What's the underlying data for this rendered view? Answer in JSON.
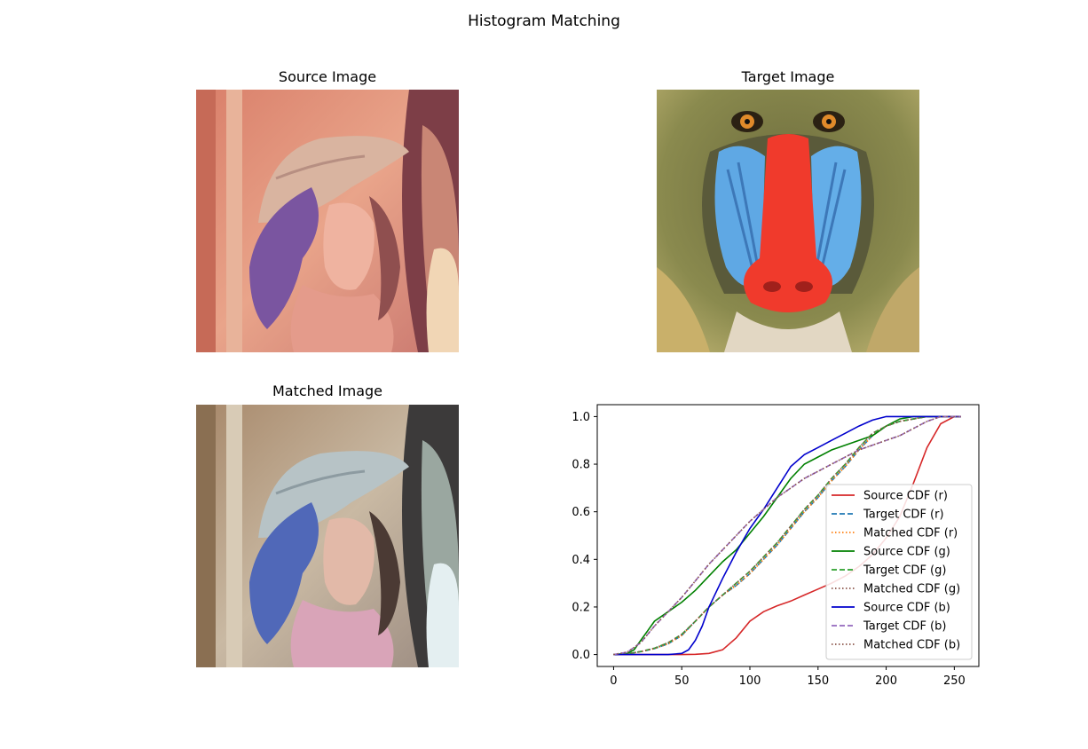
{
  "figure": {
    "suptitle": "Histogram Matching"
  },
  "panels": {
    "source": {
      "title": "Source Image"
    },
    "target": {
      "title": "Target Image"
    },
    "matched": {
      "title": "Matched Image"
    }
  },
  "chart_data": {
    "type": "line",
    "title": "",
    "xlabel": "",
    "ylabel": "",
    "xlim": [
      -12,
      268
    ],
    "ylim": [
      -0.05,
      1.05
    ],
    "xticks": [
      0,
      50,
      100,
      150,
      200,
      250
    ],
    "yticks": [
      0.0,
      0.2,
      0.4,
      0.6,
      0.8,
      1.0
    ],
    "grid": false,
    "legend_position": "lower-right",
    "series": [
      {
        "name": "Source CDF (r)",
        "color": "#d62728",
        "style": "solid",
        "x": [
          0,
          50,
          60,
          70,
          80,
          90,
          100,
          110,
          120,
          130,
          140,
          150,
          160,
          170,
          180,
          190,
          200,
          210,
          220,
          230,
          240,
          250,
          255
        ],
        "y": [
          0,
          0,
          0.001,
          0.005,
          0.02,
          0.07,
          0.14,
          0.18,
          0.205,
          0.225,
          0.25,
          0.275,
          0.3,
          0.33,
          0.37,
          0.42,
          0.49,
          0.58,
          0.72,
          0.87,
          0.97,
          1.0,
          1.0
        ]
      },
      {
        "name": "Target CDF (r)",
        "color": "#1f77b4",
        "style": "dashed",
        "x": [
          0,
          10,
          20,
          30,
          40,
          50,
          60,
          70,
          80,
          90,
          100,
          110,
          120,
          130,
          140,
          150,
          160,
          170,
          180,
          190,
          200,
          210,
          220,
          230,
          240,
          250,
          255
        ],
        "y": [
          0,
          0.003,
          0.012,
          0.025,
          0.045,
          0.08,
          0.14,
          0.2,
          0.25,
          0.29,
          0.34,
          0.4,
          0.46,
          0.53,
          0.6,
          0.66,
          0.73,
          0.79,
          0.86,
          0.92,
          0.96,
          0.98,
          0.99,
          1.0,
          1.0,
          1.0,
          1.0
        ]
      },
      {
        "name": "Matched CDF (r)",
        "color": "#ff7f0e",
        "style": "dotted",
        "x": [
          0,
          10,
          20,
          30,
          40,
          50,
          60,
          70,
          80,
          90,
          100,
          110,
          120,
          130,
          140,
          150,
          160,
          170,
          180,
          190,
          200,
          210,
          220,
          230,
          240,
          250,
          255
        ],
        "y": [
          0,
          0.003,
          0.012,
          0.025,
          0.045,
          0.08,
          0.14,
          0.2,
          0.25,
          0.29,
          0.34,
          0.4,
          0.46,
          0.53,
          0.6,
          0.66,
          0.73,
          0.79,
          0.86,
          0.92,
          0.96,
          0.98,
          0.99,
          1.0,
          1.0,
          1.0,
          1.0
        ]
      },
      {
        "name": "Source CDF (g)",
        "color": "#008000",
        "style": "solid",
        "x": [
          0,
          10,
          15,
          20,
          25,
          30,
          40,
          50,
          60,
          70,
          80,
          90,
          100,
          110,
          120,
          130,
          140,
          150,
          160,
          170,
          180,
          190,
          200,
          210,
          220,
          230,
          240,
          250,
          255
        ],
        "y": [
          0,
          0.005,
          0.02,
          0.06,
          0.1,
          0.14,
          0.18,
          0.22,
          0.27,
          0.33,
          0.39,
          0.44,
          0.51,
          0.58,
          0.66,
          0.74,
          0.8,
          0.83,
          0.86,
          0.88,
          0.9,
          0.92,
          0.96,
          0.99,
          1.0,
          1.0,
          1.0,
          1.0,
          1.0
        ]
      },
      {
        "name": "Target CDF (g)",
        "color": "#2ca02c",
        "style": "dashed",
        "x": [
          0,
          10,
          20,
          30,
          40,
          50,
          60,
          70,
          80,
          90,
          100,
          110,
          120,
          130,
          140,
          150,
          160,
          170,
          180,
          190,
          200,
          210,
          220,
          230,
          240,
          250,
          255
        ],
        "y": [
          0,
          0.003,
          0.013,
          0.027,
          0.05,
          0.085,
          0.14,
          0.2,
          0.25,
          0.3,
          0.35,
          0.41,
          0.47,
          0.54,
          0.61,
          0.67,
          0.74,
          0.8,
          0.87,
          0.93,
          0.96,
          0.98,
          0.99,
          1.0,
          1.0,
          1.0,
          1.0
        ]
      },
      {
        "name": "Matched CDF (g)",
        "color": "#8c564b",
        "style": "dotted",
        "x": [
          0,
          10,
          20,
          30,
          40,
          50,
          60,
          70,
          80,
          90,
          100,
          110,
          120,
          130,
          140,
          150,
          160,
          170,
          180,
          190,
          200,
          210,
          220,
          230,
          240,
          250,
          255
        ],
        "y": [
          0,
          0.003,
          0.013,
          0.027,
          0.05,
          0.085,
          0.14,
          0.2,
          0.25,
          0.3,
          0.35,
          0.41,
          0.47,
          0.54,
          0.61,
          0.67,
          0.74,
          0.8,
          0.87,
          0.93,
          0.96,
          0.98,
          0.99,
          1.0,
          1.0,
          1.0,
          1.0
        ]
      },
      {
        "name": "Source CDF (b)",
        "color": "#0000cd",
        "style": "solid",
        "x": [
          0,
          40,
          50,
          55,
          60,
          65,
          70,
          80,
          90,
          100,
          110,
          120,
          130,
          140,
          150,
          160,
          170,
          180,
          190,
          200,
          210,
          220,
          230,
          240,
          250,
          255
        ],
        "y": [
          0,
          0,
          0.005,
          0.02,
          0.06,
          0.12,
          0.2,
          0.32,
          0.43,
          0.53,
          0.61,
          0.7,
          0.79,
          0.84,
          0.87,
          0.9,
          0.93,
          0.96,
          0.985,
          1.0,
          1.0,
          1.0,
          1.0,
          1.0,
          1.0,
          1.0
        ]
      },
      {
        "name": "Target CDF (b)",
        "color": "#9467bd",
        "style": "dashed",
        "x": [
          0,
          10,
          20,
          30,
          40,
          50,
          60,
          70,
          80,
          90,
          100,
          110,
          120,
          130,
          140,
          150,
          160,
          170,
          180,
          190,
          200,
          210,
          220,
          230,
          240,
          250,
          255
        ],
        "y": [
          0,
          0.01,
          0.05,
          0.12,
          0.18,
          0.24,
          0.31,
          0.38,
          0.44,
          0.5,
          0.56,
          0.61,
          0.66,
          0.7,
          0.74,
          0.77,
          0.8,
          0.83,
          0.86,
          0.88,
          0.9,
          0.92,
          0.95,
          0.98,
          1.0,
          1.0,
          1.0
        ]
      },
      {
        "name": "Matched CDF (b)",
        "color": "#8c564b",
        "style": "dotted",
        "x": [
          0,
          10,
          20,
          30,
          40,
          50,
          60,
          70,
          80,
          90,
          100,
          110,
          120,
          130,
          140,
          150,
          160,
          170,
          180,
          190,
          200,
          210,
          220,
          230,
          240,
          250,
          255
        ],
        "y": [
          0,
          0.01,
          0.05,
          0.12,
          0.18,
          0.24,
          0.31,
          0.38,
          0.44,
          0.5,
          0.56,
          0.61,
          0.66,
          0.7,
          0.74,
          0.77,
          0.8,
          0.83,
          0.86,
          0.88,
          0.9,
          0.92,
          0.95,
          0.98,
          1.0,
          1.0,
          1.0
        ]
      }
    ]
  }
}
